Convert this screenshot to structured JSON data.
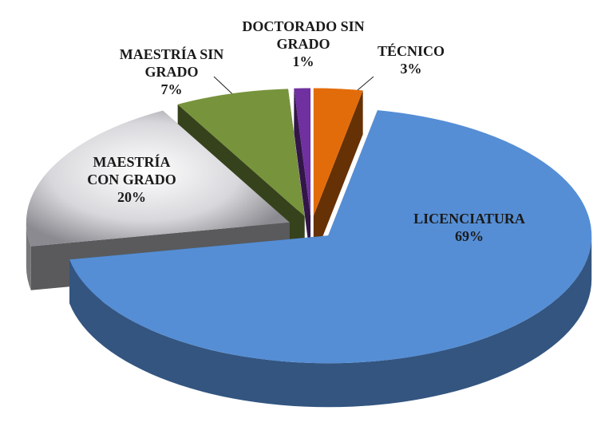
{
  "chart_data": {
    "type": "pie3d",
    "categories": [
      "TÉCNICO",
      "LICENCIATURA",
      "MAESTRÍA CON GRADO",
      "MAESTRÍA SIN GRADO",
      "DOCTORADO SIN GRADO"
    ],
    "values": [
      3,
      69,
      20,
      7,
      1
    ],
    "value_labels": [
      "3%",
      "69%",
      "20%",
      "7%",
      "1%"
    ],
    "colors": [
      "#e36c0a",
      "#558ed5",
      "#c8c8cc",
      "#77933c",
      "#7030a0"
    ]
  }
}
